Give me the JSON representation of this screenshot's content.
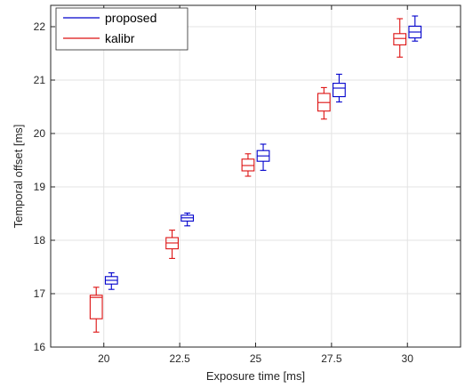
{
  "chart_data": {
    "type": "box",
    "xlabel": "Exposure time [ms]",
    "ylabel": "Temporal offset [ms]",
    "categories": [
      "20",
      "22.5",
      "25",
      "27.5",
      "30"
    ],
    "ylim": [
      16,
      22.4
    ],
    "yticks": [
      "16",
      "17",
      "18",
      "19",
      "20",
      "21",
      "22"
    ],
    "grid": true,
    "legend": "top-left",
    "series": [
      {
        "name": "proposed",
        "color": "#0000cc",
        "boxes": [
          {
            "min": 17.08,
            "q1": 17.18,
            "median": 17.25,
            "q3": 17.32,
            "max": 17.39
          },
          {
            "min": 18.27,
            "q1": 18.36,
            "median": 18.42,
            "q3": 18.47,
            "max": 18.51
          },
          {
            "min": 19.31,
            "q1": 19.48,
            "median": 19.58,
            "q3": 19.68,
            "max": 19.8
          },
          {
            "min": 20.59,
            "q1": 20.69,
            "median": 20.85,
            "q3": 20.94,
            "max": 21.11
          },
          {
            "min": 21.73,
            "q1": 21.79,
            "median": 21.9,
            "q3": 22.01,
            "max": 22.2
          }
        ]
      },
      {
        "name": "kalibr",
        "color": "#dd1111",
        "boxes": [
          {
            "min": 16.28,
            "q1": 16.53,
            "median": 16.93,
            "q3": 16.97,
            "max": 17.12
          },
          {
            "min": 17.66,
            "q1": 17.84,
            "median": 17.95,
            "q3": 18.05,
            "max": 18.19
          },
          {
            "min": 19.2,
            "q1": 19.3,
            "median": 19.4,
            "q3": 19.52,
            "max": 19.62
          },
          {
            "min": 20.27,
            "q1": 20.42,
            "median": 20.58,
            "q3": 20.75,
            "max": 20.86
          },
          {
            "min": 21.43,
            "q1": 21.66,
            "median": 21.78,
            "q3": 21.87,
            "max": 22.15
          }
        ]
      }
    ]
  }
}
